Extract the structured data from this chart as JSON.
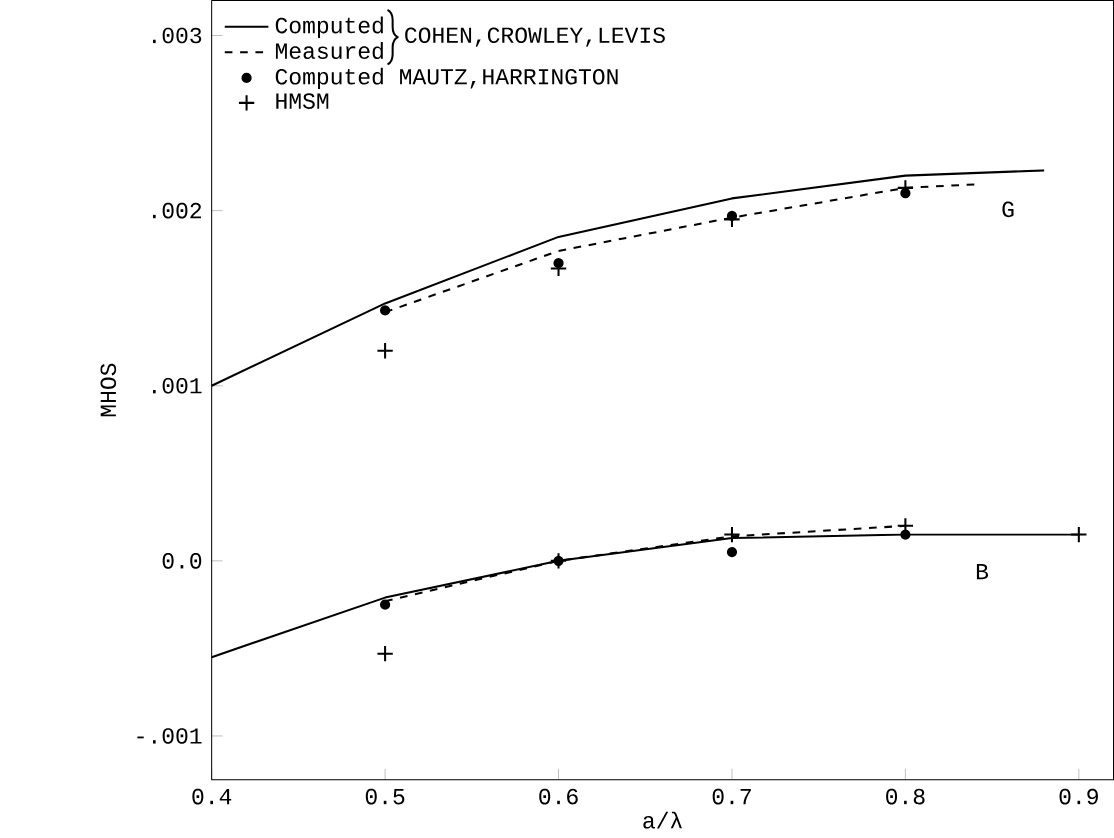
{
  "chart_data": {
    "type": "line",
    "xlabel": "a/λ",
    "ylabel": "MHOS",
    "xlim": [
      0.4,
      0.92
    ],
    "ylim": [
      -0.00125,
      0.0032
    ],
    "xticks": [
      0.4,
      0.5,
      0.6,
      0.7,
      0.8,
      0.9
    ],
    "yticks": [
      {
        "value": -0.001,
        "label": "-.001"
      },
      {
        "value": 0,
        "label": "0.0"
      },
      {
        "value": 0.001,
        "label": ".001"
      },
      {
        "value": 0.002,
        "label": ".002"
      },
      {
        "value": 0.003,
        "label": ".003"
      }
    ],
    "legend": "top left",
    "grid": false,
    "annotations": [
      "COHEN,CROWLEY,LEVIS",
      {
        "text": "G",
        "x": 0.85,
        "y": 0.00222
      },
      {
        "text": "B",
        "x": 0.835,
        "y": 0.00015
      }
    ],
    "series": [
      {
        "name": "Computed",
        "color": "#000000",
        "line_style": "solid",
        "x": [
          0.4,
          0.5,
          0.6,
          0.7,
          0.8,
          0.88
        ],
        "values": [
          0.001,
          0.00147,
          0.00185,
          0.00207,
          0.0022,
          0.00223
        ]
      },
      {
        "name": "Measured",
        "color": "#000000",
        "line_style": "dashed",
        "x": [
          0.5,
          0.6,
          0.7,
          0.8,
          0.84
        ],
        "values": [
          0.00142,
          0.00177,
          0.00196,
          0.00213,
          0.00215
        ]
      },
      {
        "color": "#000000",
        "line_style": "solid",
        "x": [
          0.4,
          0.5,
          0.6,
          0.7,
          0.8,
          0.9
        ],
        "values": [
          -0.00055,
          -0.00021,
          0.0,
          0.00013,
          0.00015,
          0.00015
        ]
      },
      {
        "color": "#000000",
        "line_style": "dashed",
        "x": [
          0.5,
          0.6,
          0.7,
          0.8
        ],
        "values": [
          -0.00023,
          0.0,
          0.00014,
          0.0002
        ]
      },
      {
        "name": "Computed MAUTZ,HARRINGTON",
        "type": "scatter",
        "marker": "circle",
        "color": "#000000",
        "x": [
          0.5,
          0.6,
          0.7,
          0.8,
          0.5,
          0.6,
          0.7,
          0.8
        ],
        "values": [
          0.00143,
          0.0017,
          0.00197,
          0.0021,
          -0.00025,
          0.0,
          5e-05,
          0.00015
        ]
      },
      {
        "name": "HMSM",
        "type": "scatter",
        "marker": "cross",
        "color": "#000000",
        "x": [
          0.5,
          0.6,
          0.7,
          0.8,
          0.5,
          0.6,
          0.7,
          0.8,
          0.9
        ],
        "values": [
          0.0012,
          0.00167,
          0.00195,
          0.00213,
          -0.00053,
          0.0,
          0.00015,
          0.0002,
          0.00015
        ]
      }
    ]
  }
}
